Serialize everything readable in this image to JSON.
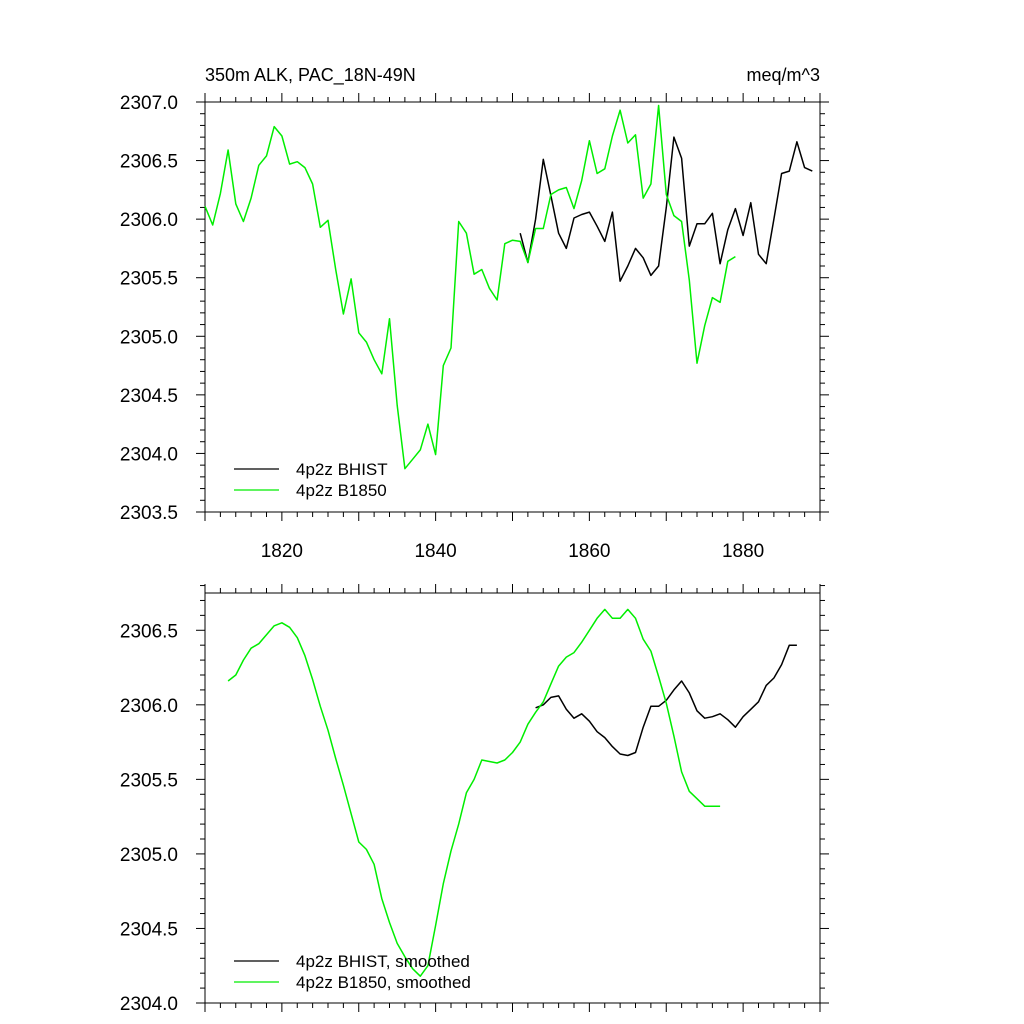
{
  "chart_data": [
    {
      "type": "line",
      "title": "350m ALK, PAC_18N-49N",
      "units": "meq/m^3",
      "xlim": [
        1810,
        1890
      ],
      "ylim": [
        2303.5,
        2307.0
      ],
      "yticks": [
        "2303.5",
        "2304.0",
        "2304.5",
        "2305.0",
        "2305.5",
        "2306.0",
        "2306.5",
        "2307.0"
      ],
      "xticks": [
        "1820",
        "1840",
        "1860",
        "1880"
      ],
      "legend_position": "bottom-left",
      "series": [
        {
          "name": "4p2z BHIST",
          "color": "#000000",
          "x": [
            1851,
            1852,
            1853,
            1854,
            1855,
            1856,
            1857,
            1858,
            1859,
            1860,
            1861,
            1862,
            1863,
            1864,
            1865,
            1866,
            1867,
            1868,
            1869,
            1870,
            1871,
            1872,
            1873,
            1874,
            1875,
            1876,
            1877,
            1878,
            1879,
            1880,
            1881,
            1882,
            1883,
            1884,
            1885,
            1886,
            1887,
            1888,
            1889
          ],
          "y": [
            2305.88,
            2305.63,
            2306.0,
            2306.51,
            2306.2,
            2305.88,
            2305.75,
            2306.01,
            2306.04,
            2306.06,
            2305.94,
            2305.81,
            2306.06,
            2305.47,
            2305.6,
            2305.75,
            2305.67,
            2305.52,
            2305.6,
            2306.1,
            2306.7,
            2306.52,
            2305.77,
            2305.96,
            2305.96,
            2306.05,
            2305.62,
            2305.91,
            2306.09,
            2305.86,
            2306.14,
            2305.7,
            2305.62,
            2306.0,
            2306.39,
            2306.41,
            2306.66,
            2306.44,
            2306.41
          ]
        },
        {
          "name": "4p2z B1850",
          "color": "#00ee00",
          "x": [
            1810,
            1811,
            1812,
            1813,
            1814,
            1815,
            1816,
            1817,
            1818,
            1819,
            1820,
            1821,
            1822,
            1823,
            1824,
            1825,
            1826,
            1827,
            1828,
            1829,
            1830,
            1831,
            1832,
            1833,
            1834,
            1835,
            1836,
            1837,
            1838,
            1839,
            1840,
            1841,
            1842,
            1843,
            1844,
            1845,
            1846,
            1847,
            1848,
            1849,
            1850,
            1851,
            1852,
            1853,
            1854,
            1855,
            1856,
            1857,
            1858,
            1859,
            1860,
            1861,
            1862,
            1863,
            1864,
            1865,
            1866,
            1867,
            1868,
            1869,
            1870,
            1871,
            1872,
            1873,
            1874,
            1875,
            1876,
            1877,
            1878,
            1879
          ],
          "y": [
            2306.11,
            2305.95,
            2306.22,
            2306.59,
            2306.13,
            2305.98,
            2306.18,
            2306.46,
            2306.54,
            2306.79,
            2306.71,
            2306.47,
            2306.49,
            2306.44,
            2306.3,
            2305.93,
            2305.99,
            2305.57,
            2305.19,
            2305.49,
            2305.03,
            2304.95,
            2304.8,
            2304.68,
            2305.15,
            2304.41,
            2303.87,
            2303.95,
            2304.03,
            2304.25,
            2303.99,
            2304.75,
            2304.9,
            2305.98,
            2305.88,
            2305.53,
            2305.57,
            2305.41,
            2305.31,
            2305.79,
            2305.82,
            2305.81,
            2305.63,
            2305.92,
            2305.92,
            2306.21,
            2306.25,
            2306.27,
            2306.09,
            2306.33,
            2306.67,
            2306.39,
            2306.43,
            2306.71,
            2306.93,
            2306.65,
            2306.72,
            2306.18,
            2306.3,
            2306.97,
            2306.21,
            2306.03,
            2305.98,
            2305.48,
            2304.77,
            2305.09,
            2305.33,
            2305.29,
            2305.64,
            2305.68
          ]
        }
      ]
    },
    {
      "type": "line",
      "xlim": [
        1810,
        1890
      ],
      "ylim": [
        2304.0,
        2306.75
      ],
      "yticks": [
        "2304.0",
        "2304.5",
        "2305.0",
        "2305.5",
        "2306.0",
        "2306.5"
      ],
      "legend_position": "bottom-left",
      "series": [
        {
          "name": "4p2z BHIST, smoothed",
          "color": "#000000",
          "x": [
            1853,
            1854,
            1855,
            1856,
            1857,
            1858,
            1859,
            1860,
            1861,
            1862,
            1863,
            1864,
            1865,
            1866,
            1867,
            1868,
            1869,
            1870,
            1871,
            1872,
            1873,
            1874,
            1875,
            1876,
            1877,
            1878,
            1879,
            1880,
            1881,
            1882,
            1883,
            1884,
            1885,
            1886,
            1887
          ],
          "y": [
            2305.98,
            2306.0,
            2306.05,
            2306.06,
            2305.97,
            2305.91,
            2305.94,
            2305.89,
            2305.82,
            2305.78,
            2305.72,
            2305.67,
            2305.66,
            2305.68,
            2305.85,
            2305.99,
            2305.99,
            2306.03,
            2306.1,
            2306.16,
            2306.08,
            2305.96,
            2305.91,
            2305.92,
            2305.94,
            2305.9,
            2305.85,
            2305.92,
            2305.97,
            2306.02,
            2306.13,
            2306.18,
            2306.27,
            2306.4,
            2306.4
          ]
        },
        {
          "name": "4p2z B1850, smoothed",
          "color": "#00ee00",
          "x": [
            1813,
            1814,
            1815,
            1816,
            1817,
            1818,
            1819,
            1820,
            1821,
            1822,
            1823,
            1824,
            1825,
            1826,
            1827,
            1828,
            1829,
            1830,
            1831,
            1832,
            1833,
            1834,
            1835,
            1836,
            1837,
            1838,
            1839,
            1840,
            1841,
            1842,
            1843,
            1844,
            1845,
            1846,
            1847,
            1848,
            1849,
            1850,
            1851,
            1852,
            1853,
            1854,
            1855,
            1856,
            1857,
            1858,
            1859,
            1860,
            1861,
            1862,
            1863,
            1864,
            1865,
            1866,
            1867,
            1868,
            1869,
            1870,
            1871,
            1872,
            1873,
            1874,
            1875,
            1876,
            1877
          ],
          "y": [
            2306.16,
            2306.2,
            2306.3,
            2306.38,
            2306.41,
            2306.47,
            2306.53,
            2306.55,
            2306.52,
            2306.45,
            2306.33,
            2306.17,
            2305.99,
            2305.83,
            2305.64,
            2305.46,
            2305.27,
            2305.08,
            2305.03,
            2304.93,
            2304.7,
            2304.54,
            2304.4,
            2304.31,
            2304.23,
            2304.18,
            2304.25,
            2304.52,
            2304.8,
            2305.02,
            2305.2,
            2305.41,
            2305.5,
            2305.63,
            2305.62,
            2305.61,
            2305.63,
            2305.68,
            2305.75,
            2305.87,
            2305.95,
            2306.02,
            2306.14,
            2306.26,
            2306.32,
            2306.35,
            2306.42,
            2306.5,
            2306.58,
            2306.64,
            2306.58,
            2306.58,
            2306.64,
            2306.58,
            2306.44,
            2306.36,
            2306.19,
            2306.01,
            2305.79,
            2305.55,
            2305.42,
            2305.37,
            2305.32,
            2305.32,
            2305.32
          ]
        }
      ]
    }
  ]
}
